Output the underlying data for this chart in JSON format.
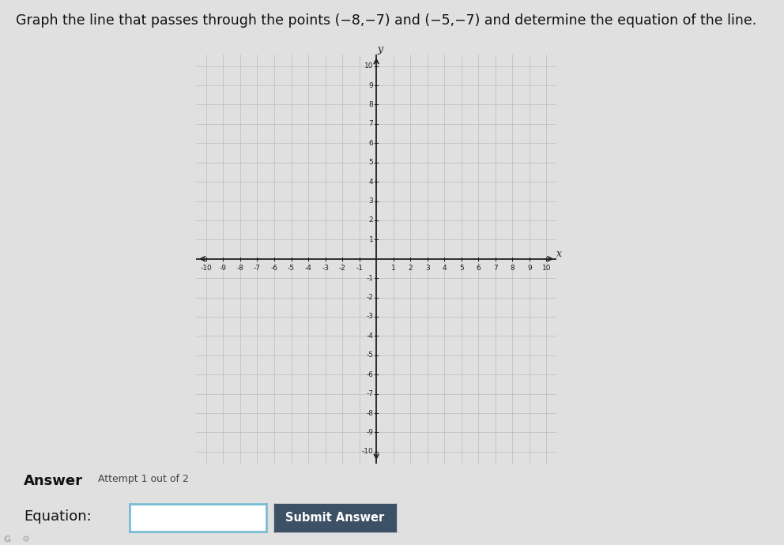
{
  "title_part1": "Graph the line that passes through the points (−8,−7) and (−5,−7) and determine the equation of the line.",
  "point1": [
    -8,
    -7
  ],
  "point2": [
    -5,
    -7
  ],
  "xlim": [
    -10,
    10
  ],
  "ylim": [
    -10,
    10
  ],
  "grid_color": "#bbbbbb",
  "axis_color": "#222222",
  "background_color": "#e6e6e6",
  "page_background": "#e0e0e0",
  "answer_label": "Answer",
  "attempt_label": "Attempt 1 out of 2",
  "equation_label": "Equation:",
  "button_label": "Submit Answer",
  "button_color": "#3d5166",
  "button_text_color": "#ffffff",
  "input_border_color": "#7abcd4"
}
